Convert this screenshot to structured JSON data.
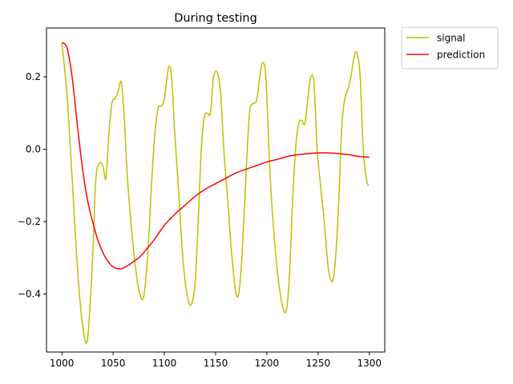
{
  "chart_data": {
    "type": "line",
    "title": "During testing",
    "xlabel": "",
    "ylabel": "",
    "xlim": [
      985,
      1315
    ],
    "ylim": [
      -0.56,
      0.335
    ],
    "xticks": [
      1000,
      1050,
      1100,
      1150,
      1200,
      1250,
      1300
    ],
    "yticks": [
      -0.4,
      -0.2,
      0.0,
      0.2
    ],
    "xtick_labels": [
      "1000",
      "1050",
      "1100",
      "1150",
      "1200",
      "1250",
      "1300"
    ],
    "ytick_labels": [
      "−0.4",
      "−0.2",
      "0.0",
      "0.2"
    ],
    "grid": false,
    "legend_position": "outside-upper-right",
    "series": [
      {
        "name": "signal",
        "color": "#bfbf00",
        "x": [
          1000,
          1005,
          1010,
          1015,
          1020,
          1025,
          1030,
          1033,
          1036,
          1040,
          1043,
          1046,
          1049,
          1052,
          1055,
          1058,
          1061,
          1064,
          1068,
          1072,
          1076,
          1080,
          1084,
          1088,
          1091,
          1094,
          1097,
          1100,
          1104,
          1107,
          1110,
          1114,
          1118,
          1122,
          1126,
          1130,
          1133,
          1136,
          1139,
          1142,
          1145,
          1148,
          1152,
          1155,
          1158,
          1162,
          1166,
          1170,
          1173,
          1176,
          1180,
          1183,
          1186,
          1190,
          1193,
          1196,
          1199,
          1202,
          1205,
          1210,
          1215,
          1219,
          1222,
          1225,
          1228,
          1231,
          1234,
          1237,
          1240,
          1243,
          1246,
          1249,
          1252,
          1256,
          1260,
          1264,
          1267,
          1270,
          1273,
          1276,
          1279,
          1282,
          1285,
          1288,
          1291,
          1294,
          1297,
          1299
        ],
        "values": [
          0.295,
          0.15,
          -0.08,
          -0.32,
          -0.48,
          -0.525,
          -0.3,
          -0.09,
          -0.04,
          -0.045,
          -0.08,
          0.05,
          0.13,
          0.14,
          0.16,
          0.185,
          0.08,
          -0.08,
          -0.22,
          -0.33,
          -0.4,
          -0.405,
          -0.28,
          -0.07,
          0.05,
          0.115,
          0.12,
          0.14,
          0.225,
          0.2,
          0.05,
          -0.12,
          -0.3,
          -0.4,
          -0.43,
          -0.37,
          -0.2,
          0.0,
          0.09,
          0.1,
          0.1,
          0.2,
          0.21,
          0.15,
          0.0,
          -0.15,
          -0.3,
          -0.4,
          -0.39,
          -0.28,
          -0.05,
          0.1,
          0.125,
          0.135,
          0.2,
          0.24,
          0.2,
          0.0,
          -0.16,
          -0.33,
          -0.43,
          -0.445,
          -0.35,
          -0.15,
          0.0,
          0.07,
          0.08,
          0.07,
          0.14,
          0.2,
          0.18,
          0.0,
          -0.09,
          -0.2,
          -0.33,
          -0.365,
          -0.3,
          -0.15,
          0.06,
          0.14,
          0.165,
          0.2,
          0.255,
          0.265,
          0.2,
          0.0,
          -0.08,
          -0.1
        ]
      },
      {
        "name": "prediction",
        "color": "#ff0000",
        "x": [
          1000,
          1005,
          1010,
          1015,
          1020,
          1025,
          1030,
          1035,
          1040,
          1045,
          1050,
          1055,
          1060,
          1065,
          1070,
          1075,
          1080,
          1090,
          1100,
          1110,
          1120,
          1130,
          1140,
          1150,
          1160,
          1170,
          1180,
          1190,
          1200,
          1210,
          1220,
          1230,
          1240,
          1250,
          1260,
          1270,
          1280,
          1290,
          1300
        ],
        "values": [
          0.295,
          0.28,
          0.2,
          0.07,
          -0.05,
          -0.14,
          -0.2,
          -0.25,
          -0.285,
          -0.31,
          -0.325,
          -0.33,
          -0.328,
          -0.32,
          -0.31,
          -0.3,
          -0.285,
          -0.25,
          -0.21,
          -0.18,
          -0.155,
          -0.13,
          -0.11,
          -0.095,
          -0.08,
          -0.065,
          -0.055,
          -0.045,
          -0.035,
          -0.028,
          -0.02,
          -0.015,
          -0.012,
          -0.01,
          -0.01,
          -0.012,
          -0.015,
          -0.02,
          -0.022
        ]
      }
    ]
  }
}
